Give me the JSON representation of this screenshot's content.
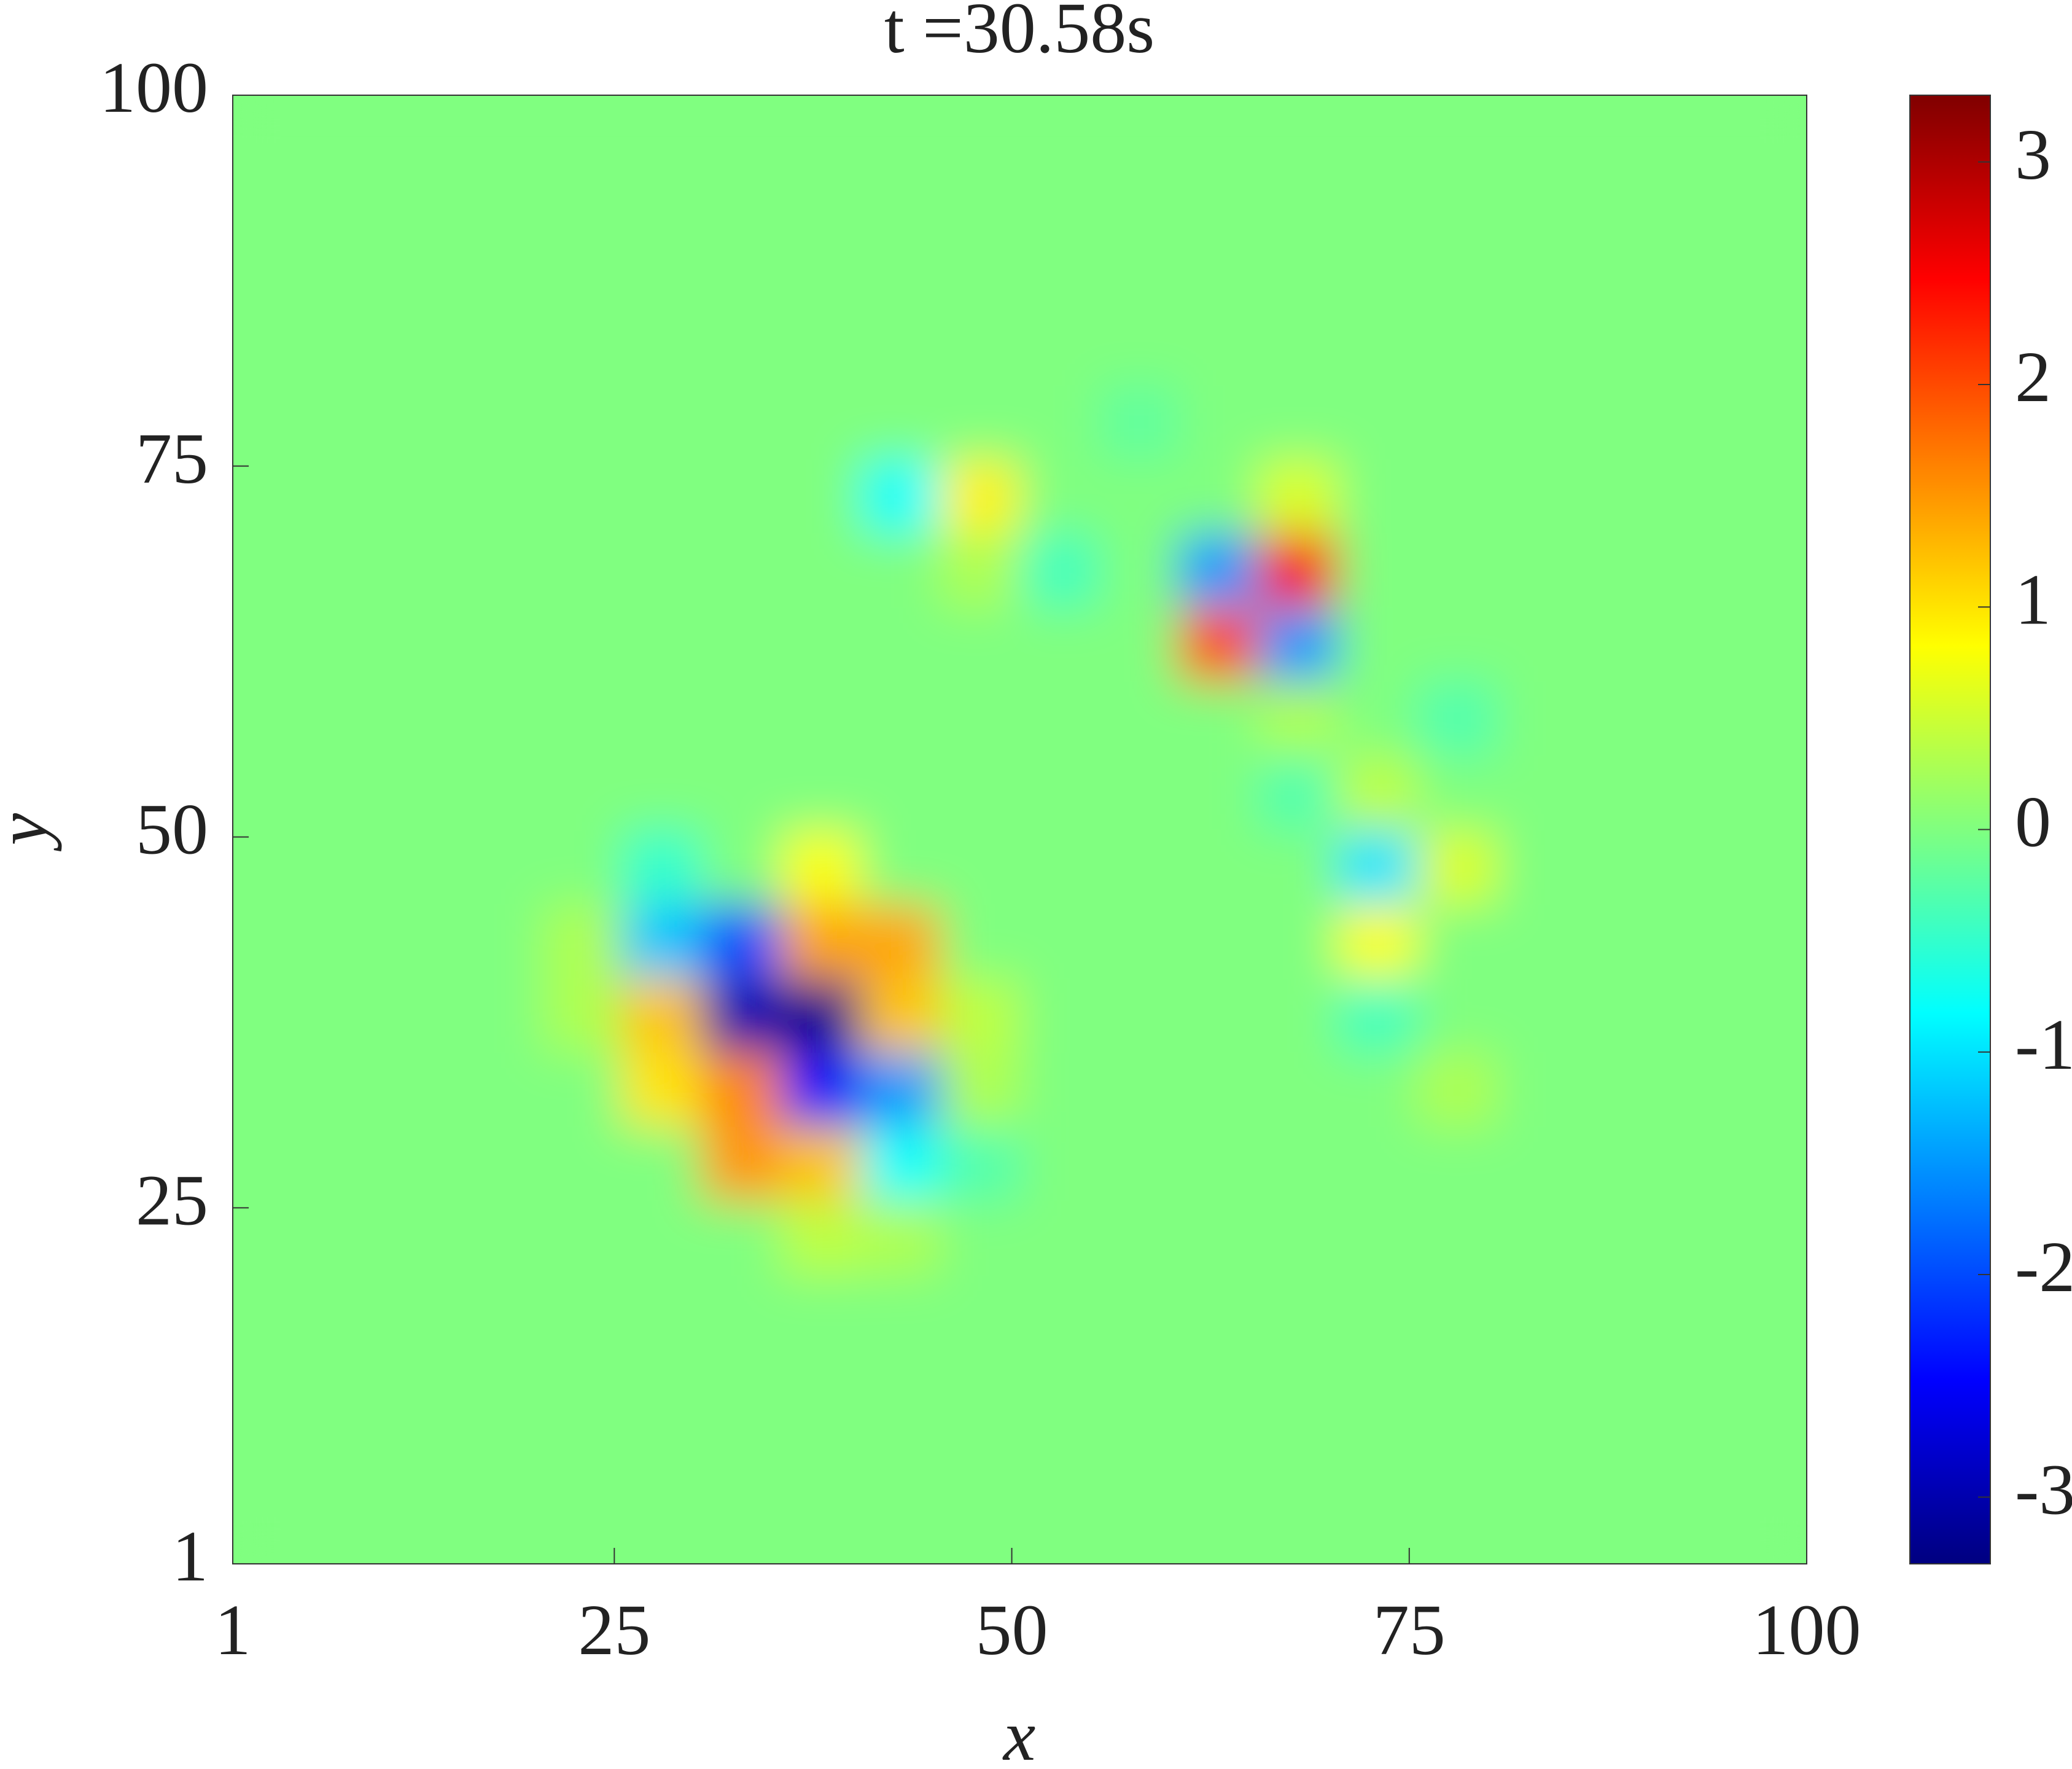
{
  "chart_data": {
    "type": "heatmap",
    "title": "t =30.58s",
    "x_label": "x",
    "y_label": "y",
    "x": [
      3,
      8,
      13,
      18,
      23,
      28,
      33,
      38,
      43,
      48,
      53,
      58,
      63,
      68,
      73,
      78,
      83,
      88,
      93,
      98
    ],
    "y": [
      3,
      8,
      13,
      18,
      23,
      28,
      33,
      38,
      43,
      48,
      53,
      58,
      63,
      68,
      73,
      78,
      83,
      88,
      93,
      98
    ],
    "z": [
      [
        0,
        0,
        0,
        0,
        0,
        0,
        0,
        0,
        0,
        0,
        0,
        0,
        0,
        0,
        0,
        0,
        0,
        0,
        0,
        0
      ],
      [
        0,
        0,
        0,
        0,
        0,
        0,
        0,
        0,
        0,
        0,
        0,
        0,
        0,
        0,
        0,
        0,
        0,
        0,
        0,
        0
      ],
      [
        0,
        0,
        0,
        0,
        0,
        0,
        0,
        0,
        0,
        0,
        0,
        0,
        0,
        0,
        0,
        0,
        0,
        0,
        0,
        0
      ],
      [
        0,
        0,
        0,
        0,
        0,
        0,
        0,
        0,
        0,
        0,
        0,
        0,
        0,
        0,
        0,
        0,
        0,
        0,
        0,
        0
      ],
      [
        0,
        0,
        0,
        0,
        0,
        0,
        0,
        0.4,
        0.3,
        0,
        0,
        0,
        0,
        0,
        0,
        0,
        0,
        0,
        0,
        0
      ],
      [
        0,
        0,
        0,
        0,
        0,
        0,
        1.5,
        1.2,
        -0.8,
        -0.3,
        0,
        0,
        0,
        0,
        0,
        0,
        0,
        0,
        0,
        0
      ],
      [
        0,
        0,
        0,
        0,
        0,
        1.0,
        1.6,
        -2.5,
        -1.5,
        0.3,
        0,
        0,
        0,
        0,
        0,
        0.3,
        0,
        0,
        0,
        0
      ],
      [
        0,
        0,
        0,
        0,
        0.3,
        1.2,
        -3.0,
        -3.2,
        1.2,
        0.4,
        0,
        0,
        0,
        0,
        -0.4,
        0,
        0,
        0,
        0,
        0
      ],
      [
        0,
        0,
        0,
        0,
        0.3,
        -1.2,
        -2.0,
        1.4,
        1.4,
        0,
        0,
        0,
        0,
        0,
        0.8,
        0,
        0,
        0,
        0,
        0
      ],
      [
        0,
        0,
        0,
        0,
        0,
        -0.5,
        0,
        0.8,
        0,
        0,
        0,
        0,
        0,
        0,
        -1.0,
        0.6,
        0,
        0,
        0,
        0
      ],
      [
        0,
        0,
        0,
        0,
        0,
        0,
        0,
        0,
        0,
        0,
        0,
        0,
        0,
        -0.3,
        0.4,
        0,
        0,
        0,
        0,
        0
      ],
      [
        0,
        0,
        0,
        0,
        0,
        0,
        0,
        0,
        0,
        0,
        0,
        0,
        0,
        0.3,
        0,
        -0.3,
        0,
        0,
        0,
        0
      ],
      [
        0,
        0,
        0,
        0,
        0,
        0,
        0,
        0,
        0,
        0,
        0,
        0,
        2.0,
        -1.5,
        0,
        0,
        0,
        0,
        0,
        0
      ],
      [
        0,
        0,
        0,
        0,
        0,
        0,
        0,
        0,
        0,
        0.3,
        -0.4,
        0,
        -1.5,
        2.5,
        0,
        0,
        0,
        0,
        0,
        0
      ],
      [
        0,
        0,
        0,
        0,
        0,
        0,
        0,
        0,
        -0.8,
        0.9,
        0,
        0,
        0,
        0.6,
        0,
        0,
        0,
        0,
        0,
        0
      ],
      [
        0,
        0,
        0,
        0,
        0,
        0,
        0,
        0,
        0,
        0,
        0,
        -0.2,
        0,
        0,
        0,
        0,
        0,
        0,
        0,
        0
      ],
      [
        0,
        0,
        0,
        0,
        0,
        0,
        0,
        0,
        0,
        0,
        0,
        0,
        0,
        0,
        0,
        0,
        0,
        0,
        0,
        0
      ],
      [
        0,
        0,
        0,
        0,
        0,
        0,
        0,
        0,
        0,
        0,
        0,
        0,
        0,
        0,
        0,
        0,
        0,
        0,
        0,
        0
      ],
      [
        0,
        0,
        0,
        0,
        0,
        0,
        0,
        0,
        0,
        0,
        0,
        0,
        0,
        0,
        0,
        0,
        0,
        0,
        0,
        0
      ],
      [
        0,
        0,
        0,
        0,
        0,
        0,
        0,
        0,
        0,
        0,
        0,
        0,
        0,
        0,
        0,
        0,
        0,
        0,
        0,
        0
      ]
    ],
    "xlim": [
      1,
      100
    ],
    "xticks": [
      1,
      25,
      50,
      75,
      100
    ],
    "ylim": [
      1,
      100
    ],
    "yticks": [
      1,
      25,
      50,
      75,
      100
    ],
    "colormap": "jet",
    "clim": [
      -3.3,
      3.3
    ],
    "colorbar_ticks": [
      -3,
      -2,
      -1,
      0,
      1,
      2,
      3
    ]
  }
}
